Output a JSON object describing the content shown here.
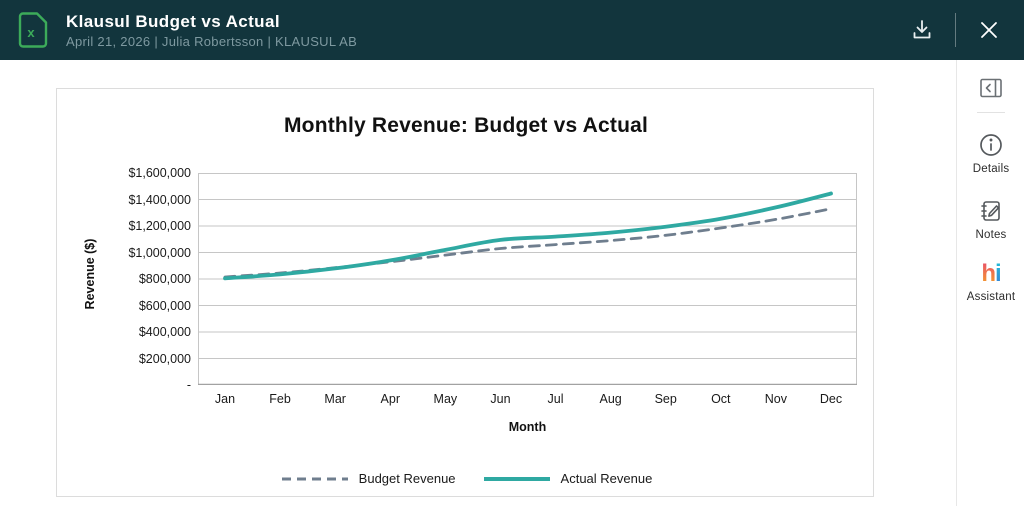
{
  "header": {
    "title": "Klausul Budget vs Actual",
    "subtitle": "April 21, 2026 | Julia Robertsson | KLAUSUL AB",
    "file_icon": "excel-file-icon",
    "file_icon_letter": "x",
    "actions": {
      "download": "download-icon",
      "close": "close-icon"
    }
  },
  "sidebar": {
    "items": [
      {
        "icon": "collapse-panel-icon",
        "label": ""
      },
      {
        "icon": "info-icon",
        "label": "Details"
      },
      {
        "icon": "notes-icon",
        "label": "Notes"
      },
      {
        "icon": "hi-assistant-logo",
        "label": "Assistant",
        "logo_text_h": "h",
        "logo_text_i": "i"
      }
    ]
  },
  "chart_data": {
    "type": "line",
    "title": "Monthly Revenue: Budget vs Actual",
    "xlabel": "Month",
    "ylabel": "Revenue ($)",
    "categories": [
      "Jan",
      "Feb",
      "Mar",
      "Apr",
      "May",
      "Jun",
      "Jul",
      "Aug",
      "Sep",
      "Oct",
      "Nov",
      "Dec"
    ],
    "series": [
      {
        "name": "Budget Revenue",
        "style": "dashed",
        "color": "#6f7e8e",
        "values": [
          815000,
          845000,
          885000,
          930000,
          980000,
          1030000,
          1060000,
          1090000,
          1130000,
          1185000,
          1250000,
          1330000
        ]
      },
      {
        "name": "Actual Revenue",
        "style": "solid",
        "color": "#2fa9a2",
        "values": [
          805000,
          835000,
          880000,
          940000,
          1020000,
          1095000,
          1120000,
          1150000,
          1195000,
          1255000,
          1340000,
          1445000
        ]
      }
    ],
    "ylim": [
      0,
      1600000
    ],
    "ytick_step": 200000,
    "yticks": [
      {
        "value": 1600000,
        "label": "$1,600,000"
      },
      {
        "value": 1400000,
        "label": "$1,400,000"
      },
      {
        "value": 1200000,
        "label": "$1,200,000"
      },
      {
        "value": 1000000,
        "label": "$1,000,000"
      },
      {
        "value": 800000,
        "label": "$800,000"
      },
      {
        "value": 600000,
        "label": "$600,000"
      },
      {
        "value": 400000,
        "label": "$400,000"
      },
      {
        "value": 200000,
        "label": "$200,000"
      },
      {
        "value": 0,
        "label": "-"
      }
    ],
    "grid": "horizontal",
    "legend_position": "bottom"
  },
  "colors": {
    "header_bg": "#12353d",
    "excel_green": "#3cab5a",
    "subtitle": "#7e99a0",
    "actual_line": "#2fa9a2",
    "budget_line": "#6f7e8e",
    "gridline": "#c6c6c6",
    "axis": "#a2a2a2"
  }
}
